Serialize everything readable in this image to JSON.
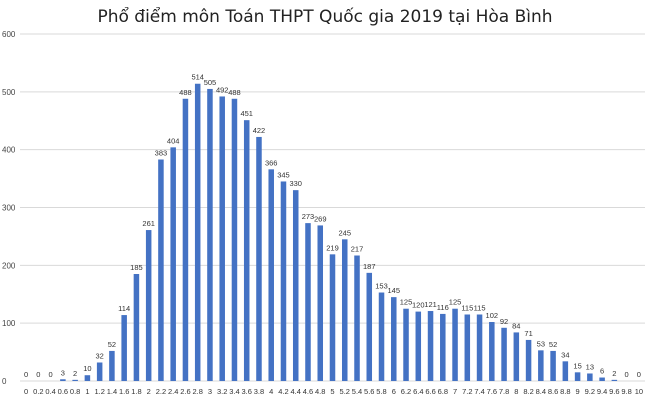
{
  "chart_data": {
    "type": "bar",
    "title": "Phổ điểm môn Toán THPT Quốc gia 2019 tại Hòa Bình",
    "xlabel": "",
    "ylabel": "",
    "ylim": [
      0,
      600
    ],
    "yticks": [
      "0",
      "100",
      "200",
      "300",
      "400",
      "500",
      "600"
    ],
    "grid": true,
    "categories": [
      "0",
      "0.2",
      "0.4",
      "0.6",
      "0.8",
      "1",
      "1.2",
      "1.4",
      "1.6",
      "1.8",
      "2",
      "2.2",
      "2.4",
      "2.6",
      "2.8",
      "3",
      "3.2",
      "3.4",
      "3.6",
      "3.8",
      "4",
      "4.2",
      "4.4",
      "4.6",
      "4.8",
      "5",
      "5.2",
      "5.4",
      "5.6",
      "5.8",
      "6",
      "6.2",
      "6.4",
      "6.6",
      "6.8",
      "7",
      "7.2",
      "7.4",
      "7.6",
      "7.8",
      "8",
      "8.2",
      "8.4",
      "8.6",
      "8.8",
      "9",
      "9.2",
      "9.4",
      "9.6",
      "9.8",
      "10"
    ],
    "values": [
      0,
      0,
      0,
      3,
      2,
      10,
      32,
      52,
      114,
      185,
      261,
      383,
      404,
      488,
      514,
      505,
      492,
      488,
      451,
      422,
      366,
      345,
      330,
      273,
      269,
      219,
      245,
      217,
      187,
      153,
      145,
      125,
      120,
      121,
      116,
      125,
      115,
      115,
      102,
      92,
      84,
      71,
      53,
      52,
      34,
      15,
      13,
      6,
      2,
      0,
      0
    ],
    "colors": {
      "bar": "#4472c4"
    }
  }
}
